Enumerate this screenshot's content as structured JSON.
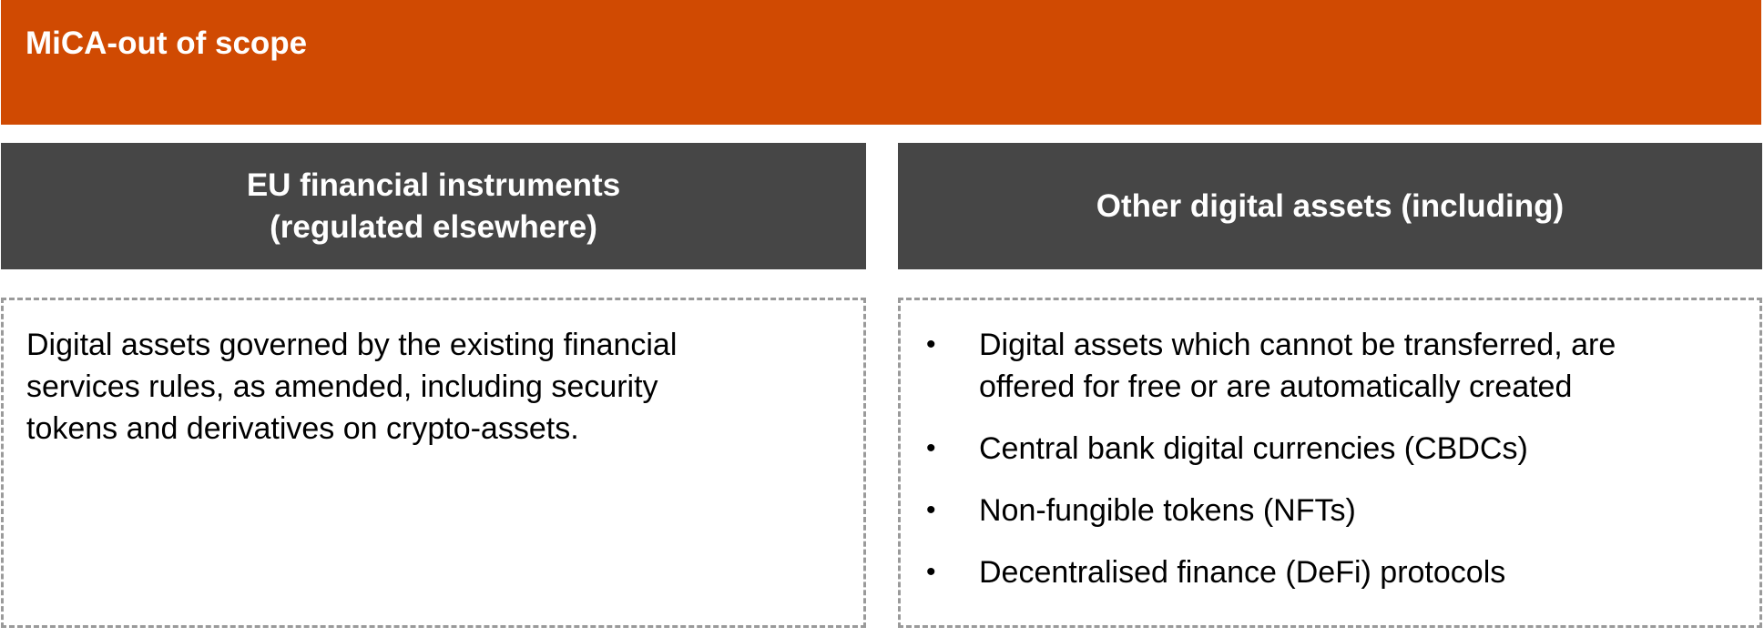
{
  "banner": {
    "title": "MiCA-out of scope",
    "color": "#d04a02"
  },
  "columns": {
    "left": {
      "header_lines": [
        "EU financial instruments",
        "(regulated elsewhere)"
      ],
      "body_lines": [
        "Digital assets governed by the existing financial",
        "services rules, as amended, including security",
        "tokens and derivatives on crypto-assets."
      ]
    },
    "right": {
      "header": "Other digital assets (including)",
      "bullet_symbol": "•",
      "bullets": [
        [
          "Digital assets which cannot be transferred, are",
          "offered for free or are automatically created"
        ],
        [
          "Central bank digital currencies (CBDCs)"
        ],
        [
          "Non-fungible tokens (NFTs)"
        ],
        [
          "Decentralised finance (DeFi) protocols"
        ]
      ]
    }
  },
  "colors": {
    "header_bg": "#464646",
    "border": "#9a9a9a",
    "text": "#000000"
  }
}
